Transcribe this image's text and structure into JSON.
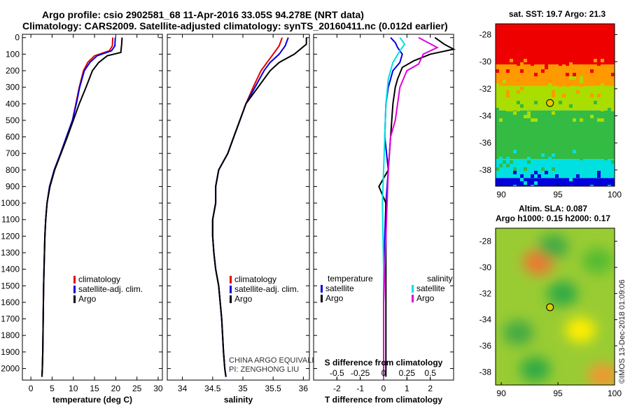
{
  "titles": {
    "line1": "Argo profile: csio 2902581_68 11-Apr-2016 33.05S 94.278E (NRT data)",
    "line2": "Climatology: CARS2009. Satellite-adjusted climatology: synTS_20160411.nc (0.012d earlier)"
  },
  "colors": {
    "clim": "#e00000",
    "sat": "#0000e0",
    "argo": "#000000",
    "sat_s": "#00e0e0",
    "argo_s": "#e000e0"
  },
  "chart_data": [
    {
      "id": "temperature",
      "type": "line",
      "xlabel": "temperature (deg C)",
      "ylabel": "",
      "xlim": [
        -2,
        31
      ],
      "ylim": [
        2070,
        -20
      ],
      "xticks": [
        0,
        5,
        10,
        15,
        20,
        25,
        30
      ],
      "yticks": [
        0,
        100,
        200,
        300,
        400,
        500,
        600,
        700,
        800,
        900,
        1000,
        1100,
        1200,
        1300,
        1400,
        1500,
        1600,
        1700,
        1800,
        1900,
        2000
      ],
      "legend": [
        "climatology",
        "satellite-adj. clim.",
        "Argo"
      ],
      "series": [
        {
          "name": "climatology",
          "color": "clim",
          "x": [
            19.3,
            19.2,
            18.5,
            15.0,
            13.4,
            12.4,
            11.4,
            10.6,
            9.8,
            8.4,
            7.0,
            5.5,
            4.4,
            3.8,
            3.5,
            3.3,
            3.2,
            3.0,
            2.9,
            2.8,
            2.7,
            2.6
          ],
          "y": [
            0,
            50,
            80,
            110,
            150,
            200,
            300,
            400,
            500,
            600,
            700,
            800,
            900,
            1000,
            1100,
            1200,
            1300,
            1500,
            1700,
            1900,
            2000,
            2050
          ]
        },
        {
          "name": "satellite-adj. clim.",
          "color": "sat",
          "x": [
            19.9,
            19.8,
            19.0,
            15.6,
            13.9,
            12.6,
            11.5,
            10.7,
            9.8,
            8.4,
            7.0,
            5.5,
            4.4,
            3.8,
            3.5,
            3.3,
            3.2,
            3.0,
            2.9,
            2.8,
            2.7,
            2.6
          ],
          "y": [
            0,
            50,
            80,
            110,
            150,
            200,
            300,
            400,
            500,
            600,
            700,
            800,
            900,
            1000,
            1100,
            1200,
            1300,
            1500,
            1700,
            1900,
            2000,
            2050
          ]
        },
        {
          "name": "Argo",
          "color": "argo",
          "x": [
            21.5,
            21.4,
            21.2,
            18.0,
            16.0,
            14.5,
            13.0,
            11.4,
            10.0,
            8.6,
            7.1,
            5.6,
            4.5,
            3.8,
            3.5,
            3.3,
            3.2,
            3.0,
            2.9,
            2.8,
            2.7,
            2.6
          ],
          "y": [
            0,
            40,
            90,
            110,
            150,
            200,
            300,
            400,
            500,
            600,
            700,
            800,
            900,
            1000,
            1100,
            1200,
            1300,
            1500,
            1700,
            1900,
            2000,
            2050
          ]
        }
      ]
    },
    {
      "id": "salinity",
      "type": "line",
      "xlabel": "salinity",
      "ylabel": "",
      "xlim": [
        33.75,
        36.1
      ],
      "ylim": [
        2070,
        -20
      ],
      "xticks": [
        34,
        34.5,
        35,
        35.5,
        36
      ],
      "xtick_labels": [
        "34",
        "34.5",
        "35",
        "35.5",
        "36"
      ],
      "yticks": [
        0,
        100,
        200,
        300,
        400,
        500,
        600,
        700,
        800,
        900,
        1000,
        1100,
        1200,
        1300,
        1400,
        1500,
        1600,
        1700,
        1800,
        1900,
        2000
      ],
      "legend": [
        "climatology",
        "satellite-adj. clim.",
        "Argo"
      ],
      "annotation": [
        "CHINA ARGO EQUIVALENT",
        "PI: ZENGHONG LIU"
      ],
      "series": [
        {
          "name": "climatology",
          "color": "clim",
          "x": [
            35.65,
            35.6,
            35.5,
            35.4,
            35.3,
            35.17,
            35.05,
            34.95,
            34.85,
            34.75,
            34.6,
            34.55,
            34.55,
            34.5,
            34.5,
            34.52,
            34.55,
            34.6,
            34.65,
            34.68,
            34.7,
            34.72
          ],
          "y": [
            0,
            50,
            100,
            150,
            200,
            300,
            400,
            500,
            600,
            700,
            800,
            900,
            1000,
            1100,
            1200,
            1300,
            1400,
            1500,
            1700,
            1900,
            2000,
            2050
          ]
        },
        {
          "name": "satellite-adj. clim.",
          "color": "sat",
          "x": [
            35.75,
            35.7,
            35.6,
            35.45,
            35.35,
            35.2,
            35.05,
            34.95,
            34.85,
            34.75,
            34.6,
            34.55,
            34.55,
            34.5,
            34.5,
            34.52,
            34.55,
            34.6,
            34.65,
            34.68,
            34.7,
            34.72
          ],
          "y": [
            0,
            50,
            100,
            150,
            200,
            300,
            400,
            500,
            600,
            700,
            800,
            900,
            1000,
            1100,
            1200,
            1300,
            1400,
            1500,
            1700,
            1900,
            2000,
            2050
          ]
        },
        {
          "name": "Argo",
          "color": "argo",
          "x": [
            36.05,
            36.05,
            35.85,
            35.6,
            35.45,
            35.25,
            35.05,
            34.95,
            34.85,
            34.75,
            34.6,
            34.55,
            34.55,
            34.5,
            34.5,
            34.52,
            34.55,
            34.6,
            34.65,
            34.68,
            34.7,
            34.72
          ],
          "y": [
            0,
            40,
            100,
            150,
            200,
            300,
            400,
            500,
            600,
            700,
            800,
            900,
            1000,
            1100,
            1200,
            1300,
            1400,
            1500,
            1700,
            1900,
            2000,
            2050
          ]
        }
      ]
    },
    {
      "id": "difference",
      "type": "line",
      "xlabel": "T difference from climatology",
      "xlabel_top": "S difference from climatology",
      "xlim": [
        -3,
        3
      ],
      "ylim": [
        2070,
        -20
      ],
      "xticks": [
        -2,
        -1,
        0,
        1,
        2
      ],
      "xticks_top": [
        -0.5,
        -0.25,
        0,
        0.25,
        0.5
      ],
      "xticks_top_labels": [
        "-0.5",
        "-0.25",
        "0",
        "0.25",
        "0.5"
      ],
      "s_scale_per_t_unit": 0.25,
      "yticks": [
        0,
        100,
        200,
        300,
        400,
        500,
        600,
        700,
        800,
        900,
        1000,
        1100,
        1200,
        1300,
        1400,
        1500,
        1600,
        1700,
        1800,
        1900,
        2000
      ],
      "legend_temperature": {
        "header": "temperature",
        "items": [
          "satellite",
          "Argo"
        ]
      },
      "legend_salinity": {
        "header": "salinity",
        "items": [
          "satellite",
          "Argo"
        ]
      },
      "series": [
        {
          "name": "temperature satellite",
          "color": "sat",
          "x": [
            0.3,
            0.5,
            0.6,
            0.8,
            0.7,
            0.4,
            0.3,
            0.2,
            0.1,
            0.05,
            0.2,
            0.1,
            0.05,
            0,
            0
          ],
          "y": [
            0,
            30,
            60,
            100,
            150,
            200,
            250,
            300,
            400,
            600,
            800,
            1000,
            1200,
            1600,
            2050
          ]
        },
        {
          "name": "temperature Argo",
          "color": "argo",
          "x": [
            2.2,
            2.6,
            3.0,
            2.0,
            1.3,
            0.8,
            0.6,
            0.5,
            0.4,
            0.3,
            0.2,
            -0.2,
            0.1,
            0.1,
            0.1,
            0.1,
            0.1
          ],
          "y": [
            0,
            40,
            70,
            100,
            140,
            180,
            250,
            300,
            400,
            600,
            800,
            900,
            1000,
            1200,
            1500,
            1800,
            2050
          ]
        },
        {
          "name": "salinity satellite",
          "color": "sat_s",
          "x": [
            0.7,
            0.9,
            0.7,
            0.4,
            0.2,
            0.1,
            0.05,
            0,
            -0.05,
            0,
            0,
            0
          ],
          "y": [
            0,
            40,
            80,
            150,
            250,
            400,
            600,
            800,
            1000,
            1400,
            1800,
            2050
          ]
        },
        {
          "name": "salinity Argo",
          "color": "argo_s",
          "x": [
            1.5,
            2.3,
            1.7,
            1.5,
            1.0,
            0.7,
            0.6,
            0.5,
            0.3,
            0.2,
            0.1,
            0,
            0
          ],
          "y": [
            0,
            60,
            100,
            160,
            200,
            300,
            400,
            500,
            600,
            800,
            1200,
            1600,
            2050
          ]
        }
      ]
    },
    {
      "id": "sst_map",
      "type": "heatmap",
      "title": "sat. SST: 19.7 Argo: 21.3",
      "xlim": [
        89.5,
        100
      ],
      "ylim": [
        -39.2,
        -27.2
      ],
      "xticks": [
        90,
        95,
        100
      ],
      "yticks": [
        -28,
        -30,
        -32,
        -34,
        -36,
        -38
      ],
      "marker": {
        "lon": 94.3,
        "lat": -33.05
      },
      "bands": [
        {
          "lat_top": -27.2,
          "lat_bot": -30.2,
          "color": "#ee0000"
        },
        {
          "lat_top": -30.2,
          "lat_bot": -31.8,
          "color": "#ff9900"
        },
        {
          "lat_top": -31.8,
          "lat_bot": -33.6,
          "color": "#aadd00"
        },
        {
          "lat_top": -33.6,
          "lat_bot": -37.2,
          "color": "#33bb44"
        },
        {
          "lat_top": -37.2,
          "lat_bot": -38.6,
          "color": "#00e0e0"
        },
        {
          "lat_top": -38.6,
          "lat_bot": -39.2,
          "color": "#0000dd"
        }
      ]
    },
    {
      "id": "sla_map",
      "type": "heatmap",
      "title_line1": "Altim. SLA: 0.087",
      "title_line2": "Argo h1000: 0.15 h2000: 0.17",
      "xlim": [
        89.5,
        100
      ],
      "ylim": [
        -39,
        -27
      ],
      "xticks": [
        90,
        95,
        100
      ],
      "yticks": [
        -28,
        -30,
        -32,
        -34,
        -36,
        -38
      ],
      "marker": {
        "lon": 94.3,
        "lat": -33.05
      },
      "blobs": [
        {
          "lon": 93.3,
          "lat": -29.6,
          "c": "#ee7733"
        },
        {
          "lon": 94.6,
          "lat": -28.4,
          "c": "#44aa44"
        },
        {
          "lon": 95.4,
          "lat": -32.0,
          "c": "#33aa44"
        },
        {
          "lon": 98.5,
          "lat": -29.5,
          "c": "#55bb33"
        },
        {
          "lon": 97.0,
          "lat": -34.8,
          "c": "#ffee00"
        },
        {
          "lon": 91.5,
          "lat": -35.0,
          "c": "#44aa44"
        },
        {
          "lon": 99.0,
          "lat": -38.3,
          "c": "#ee9933"
        },
        {
          "lon": 93.0,
          "lat": -37.8,
          "c": "#33aa44"
        }
      ]
    }
  ],
  "timestamp": "©IMOS 13-Dec-2018 01:09:06"
}
